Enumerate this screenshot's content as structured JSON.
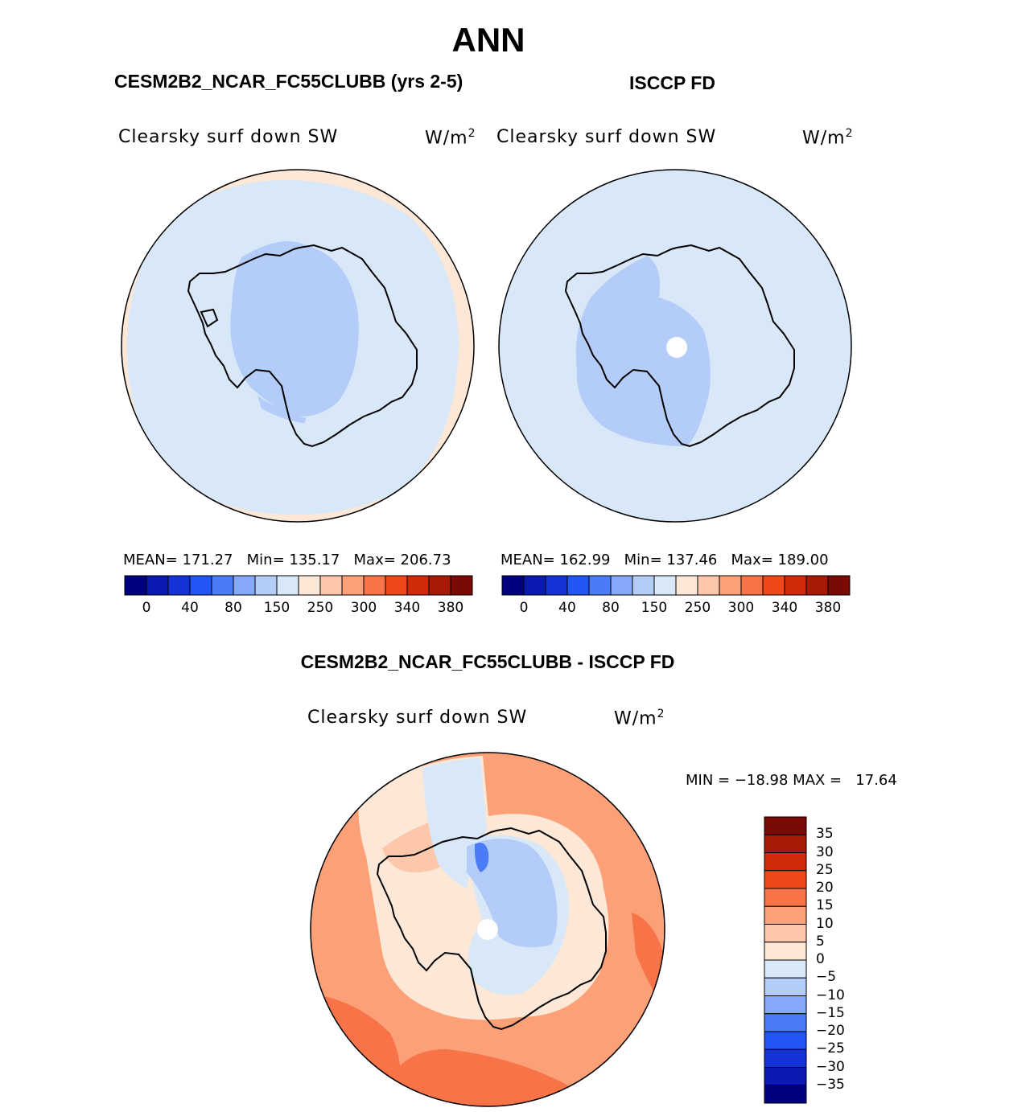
{
  "title": "ANN",
  "panels": [
    {
      "subtitle": "CESM2B2_NCAR_FC55CLUBB (yrs 2-5)",
      "variable": "Clearsky surf down SW",
      "units": "W/m",
      "units_sup": "2",
      "stats": "MEAN= 171.27   Min= 135.17   Max= 206.73"
    },
    {
      "subtitle": "ISCCP FD",
      "variable": "Clearsky surf down SW",
      "units": "W/m",
      "units_sup": "2",
      "stats": "MEAN= 162.99   Min= 137.46   Max= 189.00"
    },
    {
      "subtitle": "CESM2B2_NCAR_FC55CLUBB - ISCCP FD",
      "variable": "Clearsky surf down SW",
      "units": "W/m",
      "units_sup": "2",
      "stats": "MIN = −18.98 MAX =   17.64"
    }
  ],
  "colorbar_abs": {
    "colors": [
      "#00007f",
      "#0a1ab0",
      "#1432d8",
      "#2255f5",
      "#4a7cf8",
      "#86a8f8",
      "#b4ccf8",
      "#d8e8f8",
      "#fde7d6",
      "#fcc7ab",
      "#fca078",
      "#f87448",
      "#f04818",
      "#d02a08",
      "#a81a06",
      "#7a0a04"
    ],
    "labels": [
      "0",
      "40",
      "80",
      "150",
      "250",
      "300",
      "340",
      "380"
    ]
  },
  "colorbar_diff": {
    "colors": [
      "#7a0a04",
      "#a81a06",
      "#d02a08",
      "#f04818",
      "#f87448",
      "#fca078",
      "#fcc7ab",
      "#fde7d6",
      "#d8e8f8",
      "#b4ccf8",
      "#86a8f8",
      "#4a7cf8",
      "#2255f5",
      "#1432d8",
      "#0a1ab0",
      "#00007f"
    ],
    "labels": [
      "35",
      "30",
      "25",
      "20",
      "15",
      "10",
      "5",
      "0",
      "−5",
      "−10",
      "−15",
      "−20",
      "−25",
      "−30",
      "−35"
    ]
  }
}
